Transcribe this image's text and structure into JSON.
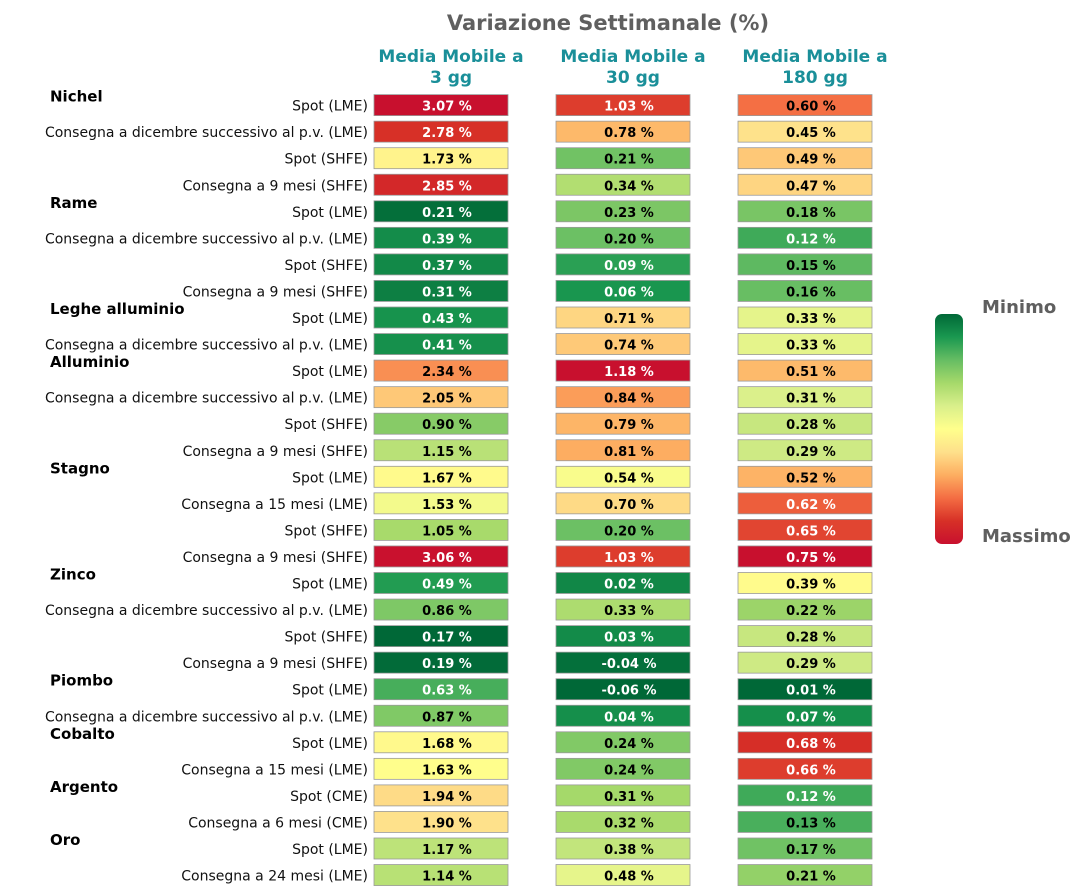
{
  "chart_data": {
    "type": "heatmap",
    "title": "Variazione Settimanale (%)",
    "columns": [
      {
        "line1": "Media Mobile a",
        "line2": "3 gg"
      },
      {
        "line1": "Media Mobile a",
        "line2": "30 gg"
      },
      {
        "line1": "Media Mobile a",
        "line2": "180 gg"
      }
    ],
    "value_suffix": " %",
    "groups": [
      {
        "name": "Nichel",
        "rows": [
          {
            "label": "Spot (LME)",
            "values": [
              3.07,
              1.03,
              0.6
            ]
          },
          {
            "label": "Consegna a dicembre successivo al p.v. (LME)",
            "values": [
              2.78,
              0.78,
              0.45
            ]
          },
          {
            "label": "Spot (SHFE)",
            "values": [
              1.73,
              0.21,
              0.49
            ]
          },
          {
            "label": "Consegna a 9 mesi (SHFE)",
            "values": [
              2.85,
              0.34,
              0.47
            ]
          }
        ]
      },
      {
        "name": "Rame",
        "rows": [
          {
            "label": "Spot (LME)",
            "values": [
              0.21,
              0.23,
              0.18
            ]
          },
          {
            "label": "Consegna a dicembre successivo al p.v. (LME)",
            "values": [
              0.39,
              0.2,
              0.12
            ]
          },
          {
            "label": "Spot (SHFE)",
            "values": [
              0.37,
              0.09,
              0.15
            ]
          },
          {
            "label": "Consegna a 9 mesi (SHFE)",
            "values": [
              0.31,
              0.06,
              0.16
            ]
          }
        ]
      },
      {
        "name": "Leghe alluminio",
        "rows": [
          {
            "label": "Spot (LME)",
            "values": [
              0.43,
              0.71,
              0.33
            ]
          },
          {
            "label": "Consegna a dicembre successivo al p.v. (LME)",
            "values": [
              0.41,
              0.74,
              0.33
            ]
          }
        ]
      },
      {
        "name": "Alluminio",
        "rows": [
          {
            "label": "Spot (LME)",
            "values": [
              2.34,
              1.18,
              0.51
            ]
          },
          {
            "label": "Consegna a dicembre successivo al p.v. (LME)",
            "values": [
              2.05,
              0.84,
              0.31
            ]
          },
          {
            "label": "Spot (SHFE)",
            "values": [
              0.9,
              0.79,
              0.28
            ]
          },
          {
            "label": "Consegna a 9 mesi (SHFE)",
            "values": [
              1.15,
              0.81,
              0.29
            ]
          }
        ]
      },
      {
        "name": "Stagno",
        "rows": [
          {
            "label": "Spot (LME)",
            "values": [
              1.67,
              0.54,
              0.52
            ]
          },
          {
            "label": "Consegna a 15 mesi (LME)",
            "values": [
              1.53,
              0.7,
              0.62
            ]
          },
          {
            "label": "Spot (SHFE)",
            "values": [
              1.05,
              0.2,
              0.65
            ]
          },
          {
            "label": "Consegna a 9 mesi (SHFE)",
            "values": [
              3.06,
              1.03,
              0.75
            ]
          }
        ]
      },
      {
        "name": "Zinco",
        "rows": [
          {
            "label": "Spot (LME)",
            "values": [
              0.49,
              0.02,
              0.39
            ]
          },
          {
            "label": "Consegna a dicembre successivo al p.v. (LME)",
            "values": [
              0.86,
              0.33,
              0.22
            ]
          },
          {
            "label": "Spot (SHFE)",
            "values": [
              0.17,
              0.03,
              0.28
            ]
          },
          {
            "label": "Consegna a 9 mesi (SHFE)",
            "values": [
              0.19,
              -0.04,
              0.29
            ]
          }
        ]
      },
      {
        "name": "Piombo",
        "rows": [
          {
            "label": "Spot (LME)",
            "values": [
              0.63,
              -0.06,
              0.01
            ]
          },
          {
            "label": "Consegna a dicembre successivo al p.v. (LME)",
            "values": [
              0.87,
              0.04,
              0.07
            ]
          }
        ]
      },
      {
        "name": "Cobalto",
        "rows": [
          {
            "label": "Spot (LME)",
            "values": [
              1.68,
              0.24,
              0.68
            ]
          },
          {
            "label": "Consegna a 15 mesi (LME)",
            "values": [
              1.63,
              0.24,
              0.66
            ]
          }
        ]
      },
      {
        "name": "Argento",
        "rows": [
          {
            "label": "Spot (CME)",
            "values": [
              1.94,
              0.31,
              0.12
            ]
          },
          {
            "label": "Consegna a 6 mesi (CME)",
            "values": [
              1.9,
              0.32,
              0.13
            ]
          }
        ]
      },
      {
        "name": "Oro",
        "rows": [
          {
            "label": "Spot (LME)",
            "values": [
              1.17,
              0.38,
              0.17
            ]
          },
          {
            "label": "Consegna a 24 mesi (LME)",
            "values": [
              1.14,
              0.48,
              0.21
            ]
          }
        ]
      }
    ],
    "colorbar": {
      "min_label": "Minimo",
      "max_label": "Massimo",
      "colormap": "RdYlGn, green = minimo, red = massimo",
      "colors": [
        "#006837",
        "#1a9850",
        "#66bd63",
        "#a6d96a",
        "#d9ef8b",
        "#ffff8c",
        "#fee08b",
        "#fdae61",
        "#f46d43",
        "#d73027",
        "#c8102e"
      ]
    }
  }
}
